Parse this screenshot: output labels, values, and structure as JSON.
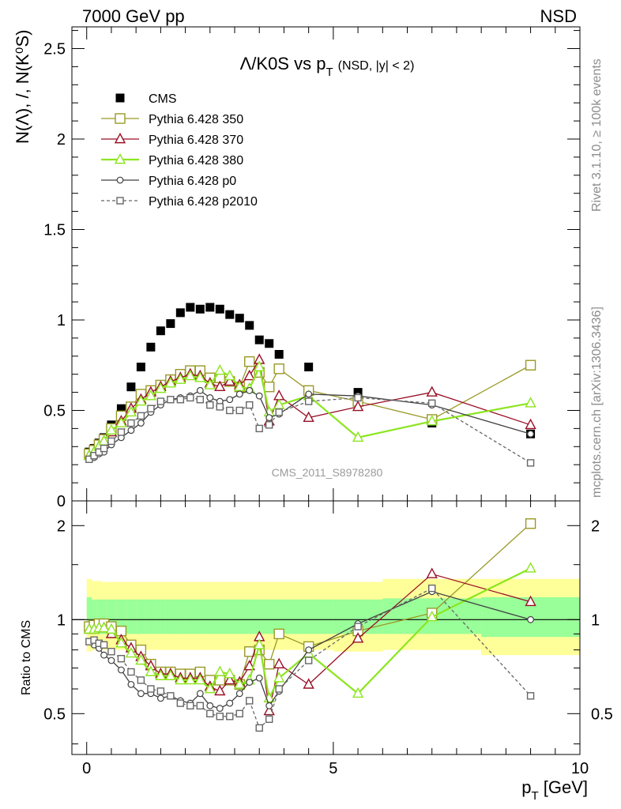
{
  "header": {
    "left": "7000 GeV pp",
    "right": "NSD"
  },
  "main_title": {
    "prefix": "Λ/K0S vs p",
    "sub": "T",
    "suffix": "(NSD, |y| < 2)"
  },
  "side_labels": {
    "rivet": "Rivet 3.1.10, ≥ 100k events",
    "mcplots": "mcplots.cern.ch [arXiv:1306.3436]"
  },
  "watermark": "CMS_2011_S8978280",
  "ylabel_top": "N(Λ), /, N(K⁰S)",
  "ylabel_bottom": "Ratio to CMS",
  "xlabel": "p_T [GeV]",
  "colors": {
    "cms": "#000000",
    "p350": "#999926",
    "p370": "#990f26",
    "p380": "#8ce51f",
    "p0": "#404040",
    "p2010": "#666666",
    "band_outer": "#ffff99",
    "band_inner": "#99ff99"
  },
  "chart_data": [
    {
      "type": "scatter",
      "panel": "main",
      "xlim": [
        -0.3,
        10
      ],
      "ylim": [
        0,
        2.62
      ],
      "xticks": [
        0,
        5,
        10
      ],
      "yticks": [
        0,
        0.5,
        1,
        1.5,
        2,
        2.5
      ],
      "ytick_labels": [
        "0",
        "0.5",
        "1",
        "1.5",
        "2",
        "2.5"
      ],
      "legend_position": "top-left",
      "series": [
        {
          "name": "CMS",
          "key": "cms",
          "marker": "filled-square",
          "line": "none",
          "x": [
            0.05,
            0.15,
            0.25,
            0.35,
            0.5,
            0.7,
            0.9,
            1.1,
            1.3,
            1.5,
            1.7,
            1.9,
            2.1,
            2.3,
            2.5,
            2.7,
            2.9,
            3.1,
            3.3,
            3.5,
            3.7,
            3.9,
            4.5,
            5.5,
            7.0,
            9.0
          ],
          "y": [
            0.27,
            0.29,
            0.32,
            0.35,
            0.42,
            0.51,
            0.63,
            0.74,
            0.85,
            0.94,
            0.98,
            1.04,
            1.07,
            1.06,
            1.07,
            1.06,
            1.03,
            1.01,
            0.97,
            0.89,
            0.87,
            0.81,
            0.74,
            0.6,
            0.43,
            0.37
          ]
        },
        {
          "name": "Pythia 6.428 350",
          "key": "p350",
          "marker": "open-square",
          "line": "solid",
          "x": [
            0.05,
            0.15,
            0.25,
            0.35,
            0.5,
            0.7,
            0.9,
            1.1,
            1.3,
            1.5,
            1.7,
            1.9,
            2.1,
            2.3,
            2.5,
            2.7,
            2.9,
            3.1,
            3.3,
            3.5,
            3.7,
            3.9,
            4.5,
            5.5,
            7.0,
            9.0
          ],
          "y": [
            0.26,
            0.28,
            0.31,
            0.34,
            0.4,
            0.47,
            0.52,
            0.59,
            0.61,
            0.64,
            0.67,
            0.7,
            0.72,
            0.72,
            0.68,
            0.68,
            0.66,
            0.63,
            0.77,
            0.71,
            0.63,
            0.73,
            0.61,
            0.55,
            0.45,
            0.75
          ]
        },
        {
          "name": "Pythia 6.428 370",
          "key": "p370",
          "marker": "open-triangle",
          "line": "solid",
          "x": [
            0.05,
            0.15,
            0.25,
            0.35,
            0.5,
            0.7,
            0.9,
            1.1,
            1.3,
            1.5,
            1.7,
            1.9,
            2.1,
            2.3,
            2.5,
            2.7,
            2.9,
            3.1,
            3.3,
            3.5,
            3.7,
            3.9,
            4.5,
            5.5,
            7.0,
            9.0
          ],
          "y": [
            0.25,
            0.27,
            0.3,
            0.33,
            0.38,
            0.44,
            0.51,
            0.56,
            0.6,
            0.63,
            0.66,
            0.68,
            0.7,
            0.69,
            0.65,
            0.63,
            0.66,
            0.64,
            0.69,
            0.78,
            0.44,
            0.58,
            0.46,
            0.52,
            0.6,
            0.42
          ]
        },
        {
          "name": "Pythia 6.428 380",
          "key": "p380",
          "marker": "open-triangle",
          "line": "solid",
          "x": [
            0.05,
            0.15,
            0.25,
            0.35,
            0.5,
            0.7,
            0.9,
            1.1,
            1.3,
            1.5,
            1.7,
            1.9,
            2.1,
            2.3,
            2.5,
            2.7,
            2.9,
            3.1,
            3.3,
            3.5,
            3.7,
            3.9,
            4.5,
            5.5,
            7.0,
            9.0
          ],
          "y": [
            0.25,
            0.27,
            0.3,
            0.33,
            0.39,
            0.43,
            0.49,
            0.55,
            0.58,
            0.62,
            0.65,
            0.67,
            0.69,
            0.68,
            0.64,
            0.72,
            0.69,
            0.63,
            0.62,
            0.74,
            0.49,
            0.53,
            0.58,
            0.35,
            0.44,
            0.54
          ]
        },
        {
          "name": "Pythia 6.428 p0",
          "key": "p0",
          "marker": "open-circle",
          "line": "solid",
          "x": [
            0.05,
            0.15,
            0.25,
            0.35,
            0.5,
            0.7,
            0.9,
            1.1,
            1.3,
            1.5,
            1.7,
            1.9,
            2.1,
            2.3,
            2.5,
            2.7,
            2.9,
            3.1,
            3.3,
            3.5,
            3.7,
            3.9,
            4.5,
            5.5,
            7.0,
            9.0
          ],
          "y": [
            0.23,
            0.24,
            0.26,
            0.27,
            0.31,
            0.35,
            0.39,
            0.43,
            0.49,
            0.53,
            0.56,
            0.57,
            0.58,
            0.61,
            0.57,
            0.55,
            0.56,
            0.59,
            0.61,
            0.58,
            0.46,
            0.48,
            0.59,
            0.58,
            0.53,
            0.37
          ]
        },
        {
          "name": "Pythia 6.428 p2010",
          "key": "p2010",
          "marker": "open-square",
          "line": "dashed",
          "x": [
            0.05,
            0.15,
            0.25,
            0.35,
            0.5,
            0.7,
            0.9,
            1.1,
            1.3,
            1.5,
            1.7,
            1.9,
            2.1,
            2.3,
            2.5,
            2.7,
            2.9,
            3.1,
            3.3,
            3.5,
            3.7,
            3.9,
            4.5,
            5.5,
            7.0,
            9.0
          ],
          "y": [
            0.23,
            0.25,
            0.27,
            0.29,
            0.33,
            0.38,
            0.43,
            0.47,
            0.51,
            0.55,
            0.56,
            0.56,
            0.57,
            0.56,
            0.53,
            0.52,
            0.5,
            0.5,
            0.53,
            0.4,
            0.42,
            0.49,
            0.55,
            0.57,
            0.54,
            0.21
          ]
        }
      ]
    },
    {
      "type": "scatter",
      "panel": "ratio",
      "xlim": [
        -0.3,
        10
      ],
      "ylim": [
        0.37,
        2.4
      ],
      "log_y": true,
      "yticks": [
        0.5,
        1,
        2
      ],
      "ytick_labels": [
        "0.5",
        "1",
        "2"
      ],
      "xtick_labels": [
        "0",
        "5",
        "10"
      ],
      "band_edges": [
        0,
        0.1,
        0.2,
        0.3,
        0.4,
        0.6,
        0.8,
        1.0,
        1.2,
        1.4,
        1.6,
        1.8,
        2.0,
        2.2,
        2.4,
        2.6,
        2.8,
        3.0,
        3.2,
        3.4,
        3.6,
        3.8,
        4.0,
        5.0,
        6.0,
        8.0,
        10.0
      ],
      "band_outer": [
        [
          0.79,
          1.35
        ],
        [
          0.8,
          1.33
        ],
        [
          0.8,
          1.33
        ],
        [
          0.8,
          1.32
        ],
        [
          0.8,
          1.32
        ],
        [
          0.8,
          1.32
        ],
        [
          0.8,
          1.32
        ],
        [
          0.8,
          1.32
        ],
        [
          0.8,
          1.32
        ],
        [
          0.8,
          1.32
        ],
        [
          0.8,
          1.32
        ],
        [
          0.8,
          1.32
        ],
        [
          0.8,
          1.32
        ],
        [
          0.8,
          1.32
        ],
        [
          0.8,
          1.32
        ],
        [
          0.8,
          1.32
        ],
        [
          0.8,
          1.32
        ],
        [
          0.8,
          1.32
        ],
        [
          0.8,
          1.32
        ],
        [
          0.8,
          1.32
        ],
        [
          0.8,
          1.32
        ],
        [
          0.8,
          1.32
        ],
        [
          0.8,
          1.32
        ],
        [
          0.79,
          1.32
        ],
        [
          0.8,
          1.35
        ],
        [
          0.77,
          1.35
        ]
      ],
      "band_inner": [
        [
          0.9,
          1.18
        ],
        [
          0.9,
          1.16
        ],
        [
          0.9,
          1.16
        ],
        [
          0.9,
          1.16
        ],
        [
          0.9,
          1.16
        ],
        [
          0.9,
          1.16
        ],
        [
          0.9,
          1.16
        ],
        [
          0.9,
          1.16
        ],
        [
          0.9,
          1.16
        ],
        [
          0.9,
          1.16
        ],
        [
          0.9,
          1.16
        ],
        [
          0.9,
          1.16
        ],
        [
          0.9,
          1.16
        ],
        [
          0.9,
          1.16
        ],
        [
          0.9,
          1.16
        ],
        [
          0.9,
          1.16
        ],
        [
          0.9,
          1.16
        ],
        [
          0.9,
          1.16
        ],
        [
          0.9,
          1.16
        ],
        [
          0.9,
          1.16
        ],
        [
          0.9,
          1.16
        ],
        [
          0.9,
          1.16
        ],
        [
          0.9,
          1.16
        ],
        [
          0.9,
          1.16
        ],
        [
          0.9,
          1.17
        ],
        [
          0.88,
          1.18
        ]
      ],
      "series": [
        {
          "name": "Pythia 6.428 350",
          "key": "p350",
          "marker": "open-square",
          "line": "solid",
          "y": [
            0.95,
            0.96,
            0.97,
            0.97,
            0.95,
            0.92,
            0.83,
            0.8,
            0.72,
            0.68,
            0.68,
            0.67,
            0.67,
            0.68,
            0.64,
            0.64,
            0.64,
            0.62,
            0.79,
            0.8,
            0.72,
            0.9,
            0.82,
            0.92,
            1.05,
            2.03
          ]
        },
        {
          "name": "Pythia 6.428 370",
          "key": "p370",
          "marker": "open-triangle",
          "line": "solid",
          "y": [
            0.93,
            0.93,
            0.94,
            0.94,
            0.9,
            0.86,
            0.81,
            0.76,
            0.71,
            0.67,
            0.67,
            0.65,
            0.65,
            0.65,
            0.61,
            0.59,
            0.64,
            0.63,
            0.71,
            0.88,
            0.51,
            0.72,
            0.62,
            0.87,
            1.4,
            1.14
          ]
        },
        {
          "name": "Pythia 6.428 380",
          "key": "p380",
          "marker": "open-triangle",
          "line": "solid",
          "y": [
            0.93,
            0.93,
            0.94,
            0.94,
            0.93,
            0.84,
            0.78,
            0.74,
            0.68,
            0.66,
            0.66,
            0.64,
            0.64,
            0.64,
            0.6,
            0.68,
            0.67,
            0.62,
            0.64,
            0.83,
            0.56,
            0.65,
            0.78,
            0.58,
            1.02,
            1.46
          ]
        },
        {
          "name": "Pythia 6.428 p0",
          "key": "p0",
          "marker": "open-circle",
          "line": "solid",
          "y": [
            0.85,
            0.83,
            0.81,
            0.77,
            0.74,
            0.69,
            0.62,
            0.58,
            0.58,
            0.56,
            0.57,
            0.55,
            0.54,
            0.58,
            0.53,
            0.52,
            0.54,
            0.58,
            0.63,
            0.65,
            0.53,
            0.59,
            0.8,
            0.97,
            1.23,
            1.0
          ]
        },
        {
          "name": "Pythia 6.428 p2010",
          "key": "p2010",
          "marker": "open-square",
          "line": "dashed",
          "y": [
            0.85,
            0.86,
            0.84,
            0.83,
            0.79,
            0.75,
            0.68,
            0.64,
            0.6,
            0.59,
            0.57,
            0.54,
            0.53,
            0.53,
            0.5,
            0.49,
            0.49,
            0.5,
            0.55,
            0.45,
            0.48,
            0.6,
            0.74,
            0.95,
            1.26,
            0.57
          ]
        }
      ]
    }
  ]
}
